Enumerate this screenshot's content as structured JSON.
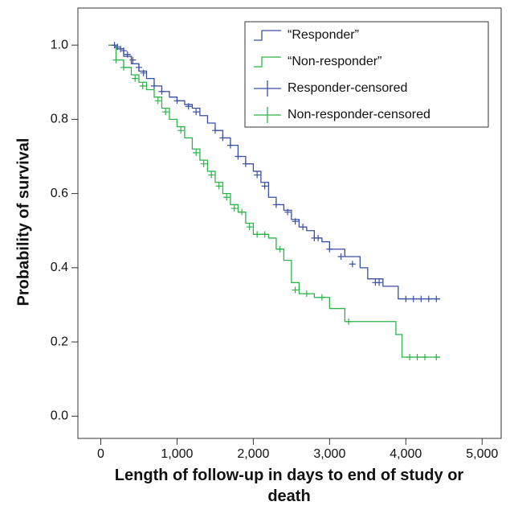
{
  "chart_data": {
    "type": "step",
    "x_label": "Length of follow-up in days to end of study or death",
    "y_label": "Probability of survival",
    "xlim": [
      -300,
      5250
    ],
    "ylim": [
      -0.06,
      1.1
    ],
    "xticks": [
      0,
      {
        "value": 1000,
        "label": "1,000"
      },
      {
        "value": 2000,
        "label": "2,000"
      },
      {
        "value": 3000,
        "label": "3,000"
      },
      {
        "value": 4000,
        "label": "4,000"
      },
      {
        "value": 5000,
        "label": "5,000"
      }
    ],
    "yticks": [
      {
        "value": 0,
        "label": "0.0"
      },
      {
        "value": 0.2,
        "label": "0.2"
      },
      {
        "value": 0.4,
        "label": "0.4"
      },
      {
        "value": 0.6,
        "label": "0.6"
      },
      {
        "value": 0.8,
        "label": "0.8"
      },
      {
        "value": 1,
        "label": "1.0"
      }
    ],
    "legend": "upper right",
    "series": [
      {
        "name": "“Responder”",
        "color": "#3a4fa0",
        "style": "step",
        "x": [
          100,
          200,
          300,
          400,
          500,
          600,
          700,
          800,
          900,
          1000,
          1100,
          1200,
          1300,
          1400,
          1500,
          1600,
          1700,
          1800,
          1900,
          2000,
          2100,
          2200,
          2300,
          2400,
          2500,
          2600,
          2700,
          2800,
          2900,
          3000,
          3200,
          3400,
          3500,
          3700,
          3900,
          4450
        ],
        "values": [
          1.0,
          0.99,
          0.97,
          0.95,
          0.93,
          0.91,
          0.89,
          0.875,
          0.86,
          0.85,
          0.84,
          0.83,
          0.81,
          0.79,
          0.77,
          0.75,
          0.73,
          0.7,
          0.68,
          0.66,
          0.63,
          0.59,
          0.57,
          0.555,
          0.53,
          0.51,
          0.5,
          0.48,
          0.47,
          0.45,
          0.43,
          0.4,
          0.37,
          0.35,
          0.316,
          0.316
        ]
      },
      {
        "name": "“Non-responder”",
        "color": "#2db34a",
        "style": "step",
        "x": [
          100,
          200,
          300,
          400,
          500,
          600,
          700,
          800,
          900,
          1000,
          1100,
          1200,
          1300,
          1400,
          1500,
          1600,
          1700,
          1800,
          1900,
          2000,
          2200,
          2300,
          2400,
          2500,
          2600,
          2800,
          3000,
          3200,
          3870,
          3950,
          4450
        ],
        "values": [
          1.0,
          0.96,
          0.94,
          0.92,
          0.9,
          0.88,
          0.86,
          0.83,
          0.8,
          0.78,
          0.75,
          0.72,
          0.69,
          0.66,
          0.63,
          0.6,
          0.57,
          0.55,
          0.52,
          0.49,
          0.48,
          0.45,
          0.42,
          0.36,
          0.33,
          0.32,
          0.29,
          0.255,
          0.22,
          0.159,
          0.159
        ]
      },
      {
        "name": "Responder-censored",
        "color": "#3a4fa0",
        "style": "censor",
        "x": [
          180,
          220,
          260,
          300,
          350,
          420,
          500,
          560,
          700,
          800,
          1000,
          1150,
          1250,
          1500,
          1600,
          1700,
          1800,
          1900,
          2050,
          2150,
          2300,
          2450,
          2550,
          2650,
          2800,
          2850,
          3000,
          3150,
          3300,
          3600,
          3650,
          4000,
          4100,
          4200,
          4300,
          4400
        ],
        "values": [
          1.0,
          0.995,
          0.99,
          0.985,
          0.975,
          0.96,
          0.94,
          0.925,
          0.89,
          0.875,
          0.85,
          0.835,
          0.82,
          0.77,
          0.75,
          0.73,
          0.7,
          0.68,
          0.65,
          0.62,
          0.57,
          0.55,
          0.525,
          0.51,
          0.48,
          0.48,
          0.45,
          0.43,
          0.41,
          0.36,
          0.36,
          0.316,
          0.316,
          0.316,
          0.316,
          0.316
        ]
      },
      {
        "name": "Non-responder-censored",
        "color": "#2db34a",
        "style": "censor",
        "x": [
          200,
          300,
          450,
          550,
          750,
          850,
          1050,
          1250,
          1350,
          1450,
          1550,
          1650,
          1750,
          1850,
          1950,
          2050,
          2150,
          2350,
          2550,
          2700,
          2900,
          3250,
          4050,
          4150,
          4250,
          4400
        ],
        "values": [
          0.96,
          0.94,
          0.91,
          0.89,
          0.85,
          0.82,
          0.77,
          0.71,
          0.68,
          0.65,
          0.62,
          0.59,
          0.56,
          0.55,
          0.51,
          0.49,
          0.49,
          0.45,
          0.34,
          0.33,
          0.32,
          0.255,
          0.159,
          0.159,
          0.159,
          0.159
        ]
      }
    ]
  }
}
